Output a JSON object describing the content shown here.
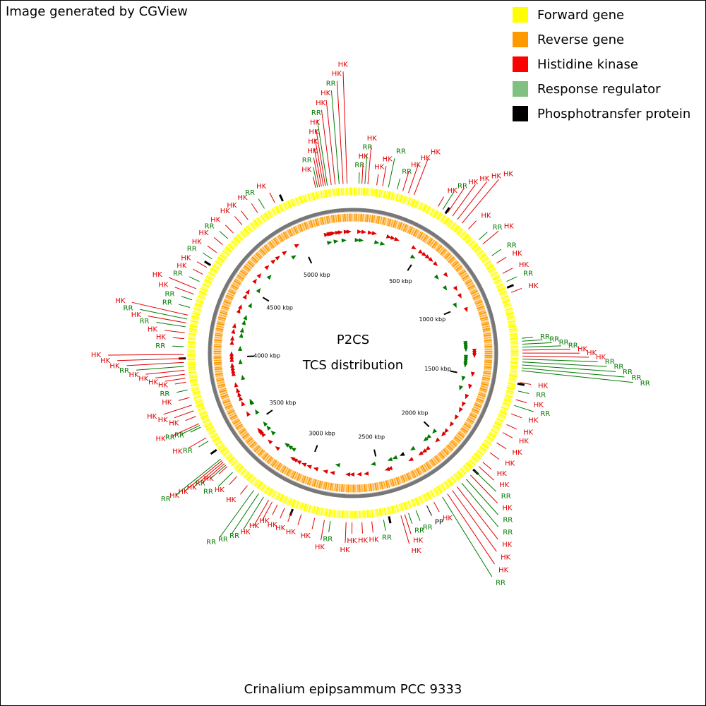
{
  "chart_data": {
    "type": "circular",
    "note": "Image generated by CGView",
    "title": "P2CS",
    "subtitle": "TCS distribution",
    "caption": "Crinalium epipsammum PCC 9333",
    "xlim": [
      0,
      5370
    ],
    "xticks": [
      {
        "value": 500,
        "label": "500 kbp"
      },
      {
        "value": 1000,
        "label": "1000 kbp"
      },
      {
        "value": 1500,
        "label": "1500 kbp"
      },
      {
        "value": 2000,
        "label": "2000 kbp"
      },
      {
        "value": 2500,
        "label": "2500 kbp"
      },
      {
        "value": 3000,
        "label": "3000 kbp"
      },
      {
        "value": 3500,
        "label": "3500 kbp"
      },
      {
        "value": 4000,
        "label": "4000 kbp"
      },
      {
        "value": 4500,
        "label": "4500 kbp"
      },
      {
        "value": 5000,
        "label": "5000 kbp"
      }
    ],
    "legend": [
      {
        "name": "Forward gene",
        "color": "#ffff00"
      },
      {
        "name": "Reverse gene",
        "color": "#ff9900"
      },
      {
        "name": "Histidine kinase",
        "color": "#ff0000"
      },
      {
        "name": "Response regulator",
        "color": "#80c080"
      },
      {
        "name": "Phosphotransfer protein",
        "color": "#000000"
      }
    ],
    "label_colors": {
      "HK": "#e00000",
      "RR": "#007a00",
      "PP": "#000000"
    },
    "features": [
      {
        "label": "RR",
        "position": 30
      },
      {
        "label": "HK",
        "position": 45
      },
      {
        "label": "RR",
        "position": 60
      },
      {
        "label": "HK",
        "position": 75
      },
      {
        "label": "HK",
        "position": 120
      },
      {
        "label": "HK",
        "position": 150
      },
      {
        "label": "RR",
        "position": 180
      },
      {
        "label": "RR",
        "position": 225
      },
      {
        "label": "HK",
        "position": 255
      },
      {
        "label": "HK",
        "position": 285
      },
      {
        "label": "HK",
        "position": 315
      },
      {
        "label": "HK",
        "position": 450
      },
      {
        "label": "RR",
        "position": 478
      },
      {
        "label": "HK",
        "position": 507
      },
      {
        "label": "HK",
        "position": 537
      },
      {
        "label": "HK",
        "position": 567
      },
      {
        "label": "HK",
        "position": 597
      },
      {
        "label": "HK",
        "position": 641
      },
      {
        "label": "RR",
        "position": 716
      },
      {
        "label": "HK",
        "position": 746
      },
      {
        "label": "RR",
        "position": 820
      },
      {
        "label": "HK",
        "position": 865
      },
      {
        "label": "HK",
        "position": 925
      },
      {
        "label": "RR",
        "position": 970
      },
      {
        "label": "HK",
        "position": 1030
      },
      {
        "label": "RR",
        "position": 1268
      },
      {
        "label": "RR",
        "position": 1283
      },
      {
        "label": "RR",
        "position": 1298
      },
      {
        "label": "RR",
        "position": 1313
      },
      {
        "label": "HK",
        "position": 1328
      },
      {
        "label": "HK",
        "position": 1343
      },
      {
        "label": "HK",
        "position": 1358
      },
      {
        "label": "RR",
        "position": 1373
      },
      {
        "label": "RR",
        "position": 1388
      },
      {
        "label": "RR",
        "position": 1403
      },
      {
        "label": "RR",
        "position": 1418
      },
      {
        "label": "RR",
        "position": 1432
      },
      {
        "label": "HK",
        "position": 1492
      },
      {
        "label": "RR",
        "position": 1536
      },
      {
        "label": "HK",
        "position": 1581
      },
      {
        "label": "RR",
        "position": 1611
      },
      {
        "label": "HK",
        "position": 1656
      },
      {
        "label": "HK",
        "position": 1715
      },
      {
        "label": "HK",
        "position": 1760
      },
      {
        "label": "HK",
        "position": 1820
      },
      {
        "label": "HK",
        "position": 1880
      },
      {
        "label": "HK",
        "position": 1940
      },
      {
        "label": "HK",
        "position": 1970
      },
      {
        "label": "RR",
        "position": 2000
      },
      {
        "label": "HK",
        "position": 2030
      },
      {
        "label": "RR",
        "position": 2060
      },
      {
        "label": "RR",
        "position": 2090
      },
      {
        "label": "HK",
        "position": 2120
      },
      {
        "label": "HK",
        "position": 2150
      },
      {
        "label": "HK",
        "position": 2180
      },
      {
        "label": "RR",
        "position": 2210
      },
      {
        "label": "HK",
        "position": 2260
      },
      {
        "label": "PP",
        "position": 2300
      },
      {
        "label": "RR",
        "position": 2360
      },
      {
        "label": "RR",
        "position": 2400
      },
      {
        "label": "HK",
        "position": 2420
      },
      {
        "label": "HK",
        "position": 2440
      },
      {
        "label": "RR",
        "position": 2530
      },
      {
        "label": "HK",
        "position": 2590
      },
      {
        "label": "HK",
        "position": 2640
      },
      {
        "label": "HK",
        "position": 2690
      },
      {
        "label": "HK",
        "position": 2720
      },
      {
        "label": "RR",
        "position": 2800
      },
      {
        "label": "HK",
        "position": 2830
      },
      {
        "label": "HK",
        "position": 2880
      },
      {
        "label": "HK",
        "position": 2950
      },
      {
        "label": "HK",
        "position": 3000
      },
      {
        "label": "HK",
        "position": 3040
      },
      {
        "label": "HK",
        "position": 3080
      },
      {
        "label": "HK",
        "position": 3110
      },
      {
        "label": "HK",
        "position": 3130
      },
      {
        "label": "RR",
        "position": 3160
      },
      {
        "label": "RR",
        "position": 3190
      },
      {
        "label": "RR",
        "position": 3220
      },
      {
        "label": "HK",
        "position": 3260
      },
      {
        "label": "HK",
        "position": 3330
      },
      {
        "label": "RR",
        "position": 3360
      },
      {
        "label": "HK",
        "position": 3400
      },
      {
        "label": "RR",
        "position": 3410
      },
      {
        "label": "HK",
        "position": 3420
      },
      {
        "label": "HK",
        "position": 3430
      },
      {
        "label": "HK",
        "position": 3440
      },
      {
        "label": "RR",
        "position": 3450
      },
      {
        "label": "RR",
        "position": 3560
      },
      {
        "label": "HK",
        "position": 3580
      },
      {
        "label": "RR",
        "position": 3640
      },
      {
        "label": "RR",
        "position": 3650
      },
      {
        "label": "HK",
        "position": 3660
      },
      {
        "label": "HK",
        "position": 3700
      },
      {
        "label": "HK",
        "position": 3730
      },
      {
        "label": "HK",
        "position": 3760
      },
      {
        "label": "HK",
        "position": 3800
      },
      {
        "label": "RR",
        "position": 3840
      },
      {
        "label": "HK",
        "position": 3880
      },
      {
        "label": "HK",
        "position": 3900
      },
      {
        "label": "HK",
        "position": 3920
      },
      {
        "label": "HK",
        "position": 3940
      },
      {
        "label": "RR",
        "position": 3960
      },
      {
        "label": "HK",
        "position": 3980
      },
      {
        "label": "HK",
        "position": 4000
      },
      {
        "label": "HK",
        "position": 4020
      },
      {
        "label": "RR",
        "position": 4060
      },
      {
        "label": "HK",
        "position": 4100
      },
      {
        "label": "HK",
        "position": 4130
      },
      {
        "label": "RR",
        "position": 4160
      },
      {
        "label": "HK",
        "position": 4180
      },
      {
        "label": "RR",
        "position": 4200
      },
      {
        "label": "HK",
        "position": 4220
      },
      {
        "label": "RR",
        "position": 4260
      },
      {
        "label": "RR",
        "position": 4300
      },
      {
        "label": "HK",
        "position": 4330
      },
      {
        "label": "HK",
        "position": 4360
      },
      {
        "label": "RR",
        "position": 4400
      },
      {
        "label": "HK",
        "position": 4440
      },
      {
        "label": "HK",
        "position": 4480
      },
      {
        "label": "RR",
        "position": 4530
      },
      {
        "label": "HK",
        "position": 4570
      },
      {
        "label": "HK",
        "position": 4620
      },
      {
        "label": "RR",
        "position": 4660
      },
      {
        "label": "HK",
        "position": 4700
      },
      {
        "label": "HK",
        "position": 4760
      },
      {
        "label": "HK",
        "position": 4800
      },
      {
        "label": "HK",
        "position": 4860
      },
      {
        "label": "RR",
        "position": 4900
      },
      {
        "label": "HK",
        "position": 4960
      },
      {
        "label": "HK",
        "position": 5180
      },
      {
        "label": "RR",
        "position": 5190
      },
      {
        "label": "HK",
        "position": 5200
      },
      {
        "label": "HK",
        "position": 5210
      },
      {
        "label": "HK",
        "position": 5220
      },
      {
        "label": "HK",
        "position": 5230
      },
      {
        "label": "RR",
        "position": 5240
      },
      {
        "label": "HK",
        "position": 5260
      },
      {
        "label": "HK",
        "position": 5280
      },
      {
        "label": "RR",
        "position": 5300
      },
      {
        "label": "HK",
        "position": 5320
      },
      {
        "label": "HK",
        "position": 5340
      }
    ]
  }
}
